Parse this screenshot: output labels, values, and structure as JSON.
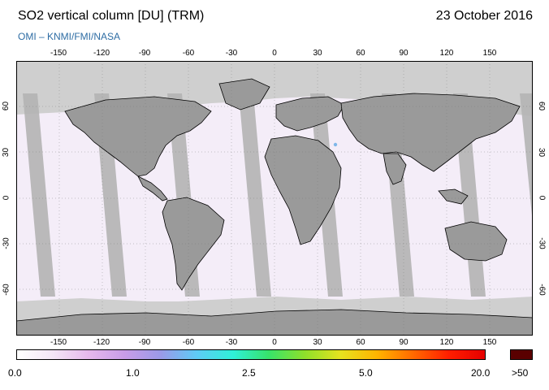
{
  "header": {
    "title": "SO2 vertical column [DU] (TRM)",
    "date": "23 October 2016",
    "credit": "OMI  –  KNMI/FMI/NASA"
  },
  "map": {
    "ocean_color": "#ffffff",
    "land_color": "#9a9a9a",
    "no_data_color": "#cfcfcf",
    "swath_gap_color": "#b4b4b4",
    "lon_ticks": [
      "-150",
      "-120",
      "-90",
      "-60",
      "-30",
      "0",
      "30",
      "60",
      "90",
      "120",
      "150"
    ],
    "lat_ticks_left": [
      "60",
      "30",
      "0",
      "-30",
      "-60"
    ],
    "lat_ticks_right": [
      "60",
      "30",
      "0",
      "-30",
      "-60"
    ],
    "lon_range": [
      -180,
      180
    ],
    "lat_range": [
      -90,
      90
    ]
  },
  "colorbar": {
    "labels": [
      "0.0",
      "1.0",
      "2.5",
      "5.0",
      "20.0"
    ],
    "overflow_label": ">50",
    "overflow_color": "#5a0000",
    "scale_colors": [
      "#ffffff",
      "#f3e6f6",
      "#e6b8ec",
      "#c89ce8",
      "#9a9ae8",
      "#5ecbf6",
      "#2ff0d8",
      "#37e36a",
      "#8fe02a",
      "#e6e21f",
      "#ffb400",
      "#ff6a00",
      "#ff1e00",
      "#e60000"
    ]
  }
}
